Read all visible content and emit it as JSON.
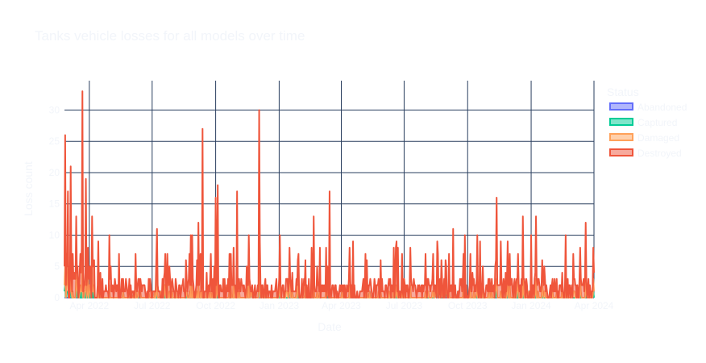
{
  "chart_data": {
    "type": "area",
    "title": "Tanks vehicle losses for all models over time",
    "xlabel": "Date",
    "ylabel": "Loss count",
    "x_ticks": [
      "Apr 2022",
      "Jul 2022",
      "Oct 2022",
      "Jan 2023",
      "Apr 2023",
      "Jul 2023",
      "Oct 2023",
      "Jan 2024",
      "Apr 2024"
    ],
    "y_ticks": [
      0,
      5,
      10,
      15,
      20,
      25,
      30
    ],
    "xlim": [
      "2022-02-24",
      "2024-04-01"
    ],
    "ylim": [
      0,
      34.7
    ],
    "grid": true,
    "legend": {
      "title": "Status",
      "position": "right"
    },
    "series": [
      {
        "name": "Abandoned",
        "color": "#636efa"
      },
      {
        "name": "Captured",
        "color": "#00cc96"
      },
      {
        "name": "Damaged",
        "color": "#ffa15a"
      },
      {
        "name": "Destroyed",
        "color": "#ef553b"
      }
    ],
    "peaks": [
      {
        "date": "2022-02-25",
        "total": 26
      },
      {
        "date": "2022-03-01",
        "total": 17
      },
      {
        "date": "2022-03-05",
        "total": 21
      },
      {
        "date": "2022-03-13",
        "total": 13
      },
      {
        "date": "2022-03-22",
        "total": 33
      },
      {
        "date": "2022-03-27",
        "total": 19
      },
      {
        "date": "2022-04-30",
        "total": 10
      },
      {
        "date": "2022-07-08",
        "total": 11
      },
      {
        "date": "2022-09-06",
        "total": 12
      },
      {
        "date": "2022-09-12",
        "total": 27
      },
      {
        "date": "2022-10-01",
        "total": 16
      },
      {
        "date": "2022-10-04",
        "total": 18
      },
      {
        "date": "2022-11-01",
        "total": 17
      },
      {
        "date": "2022-11-18",
        "total": 10
      },
      {
        "date": "2022-12-03",
        "total": 30
      },
      {
        "date": "2023-02-20",
        "total": 13
      },
      {
        "date": "2023-03-15",
        "total": 17
      },
      {
        "date": "2023-06-20",
        "total": 9
      },
      {
        "date": "2023-09-10",
        "total": 11
      },
      {
        "date": "2023-10-15",
        "total": 10
      },
      {
        "date": "2023-11-12",
        "total": 16
      },
      {
        "date": "2023-12-20",
        "total": 13
      },
      {
        "date": "2024-01-08",
        "total": 13
      },
      {
        "date": "2024-02-20",
        "total": 10
      },
      {
        "date": "2024-03-20",
        "total": 12
      }
    ]
  }
}
